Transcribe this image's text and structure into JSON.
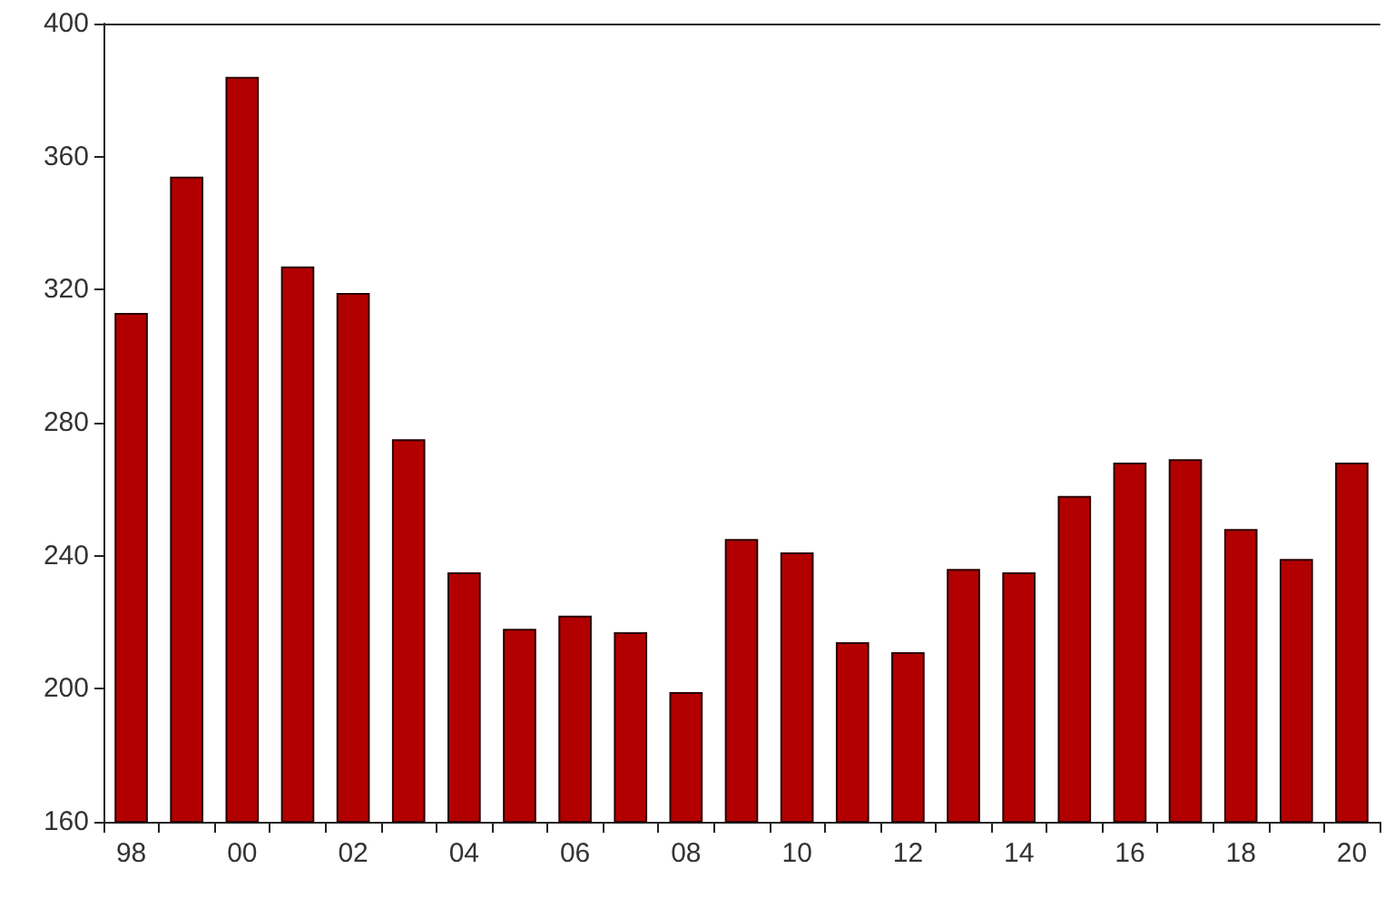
{
  "chart_data": {
    "type": "bar",
    "categories": [
      "98",
      null,
      "00",
      null,
      "02",
      null,
      "04",
      null,
      "06",
      null,
      "08",
      null,
      "10",
      null,
      "12",
      null,
      "14",
      null,
      "16",
      null,
      "18",
      null,
      "20"
    ],
    "values": [
      313,
      354,
      384,
      327,
      319,
      275,
      235,
      218,
      222,
      217,
      199,
      245,
      241,
      214,
      211,
      236,
      235,
      258,
      268,
      269,
      248,
      239,
      268
    ],
    "color": "#b20000",
    "ylim": [
      160,
      400
    ],
    "yticks": [
      160,
      200,
      240,
      280,
      320,
      360,
      400
    ],
    "grid": false
  }
}
